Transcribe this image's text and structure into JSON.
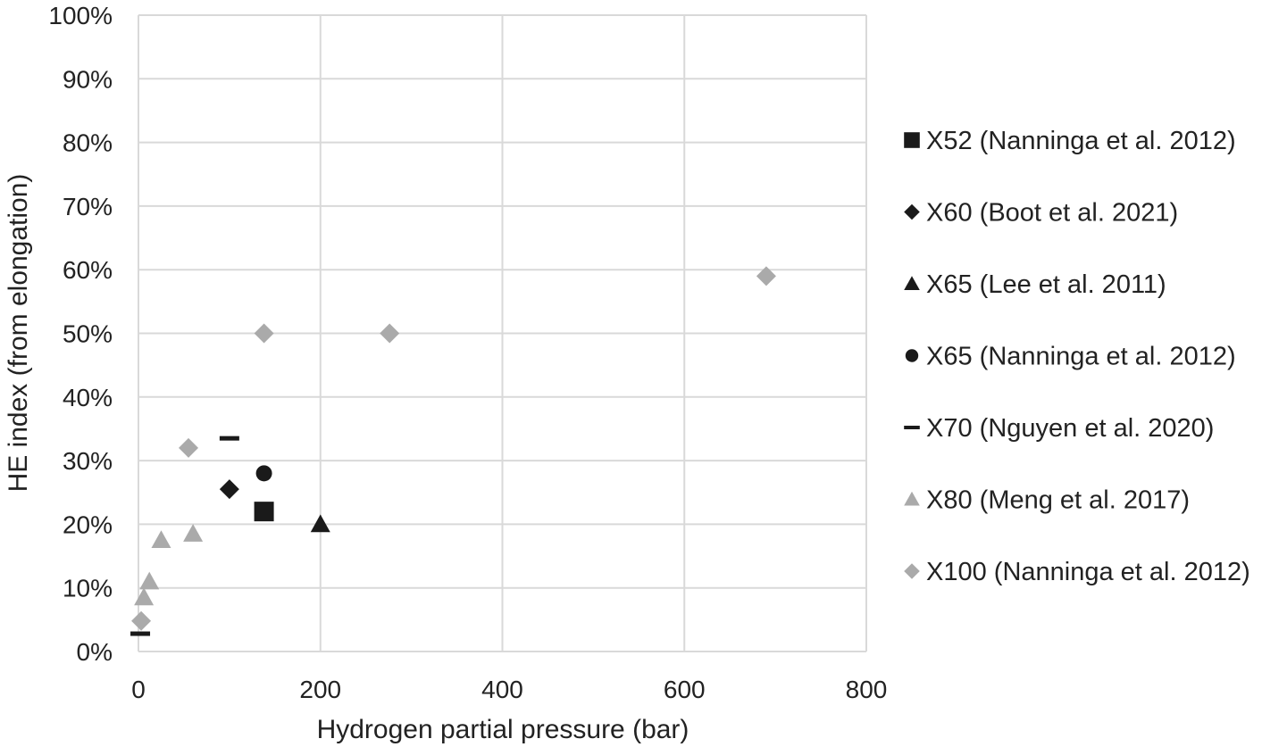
{
  "chart_data": {
    "type": "scatter",
    "xlabel": "Hydrogen partial pressure (bar)",
    "ylabel": "HE index (from elongation)",
    "xlim": [
      0,
      800
    ],
    "ylim": [
      0,
      1
    ],
    "x_ticks": [
      0,
      200,
      400,
      600,
      800
    ],
    "x_tick_labels": [
      "0",
      "200",
      "400",
      "600",
      "800"
    ],
    "y_ticks": [
      0,
      0.1,
      0.2,
      0.3,
      0.4,
      0.5,
      0.6,
      0.7,
      0.8,
      0.9,
      1.0
    ],
    "y_tick_labels": [
      "0%",
      "10%",
      "20%",
      "30%",
      "40%",
      "50%",
      "60%",
      "70%",
      "80%",
      "90%",
      "100%"
    ],
    "grid": true,
    "legend_position": "right",
    "series": [
      {
        "name": "X52 (Nanninga et al. 2012)",
        "marker": "square",
        "color": "#1a1a1a",
        "points": [
          [
            138,
            0.22
          ]
        ]
      },
      {
        "name": "X60 (Boot et al. 2021)",
        "marker": "diamond",
        "color": "#1a1a1a",
        "points": [
          [
            100,
            0.255
          ]
        ]
      },
      {
        "name": "X65 (Lee et al. 2011)",
        "marker": "triangle",
        "color": "#1a1a1a",
        "points": [
          [
            200,
            0.2
          ]
        ]
      },
      {
        "name": "X65 (Nanninga et al. 2012)",
        "marker": "circle",
        "color": "#1a1a1a",
        "points": [
          [
            138,
            0.28
          ]
        ]
      },
      {
        "name": "X70 (Nguyen et al. 2020)",
        "marker": "dash",
        "color": "#1a1a1a",
        "points": [
          [
            2,
            0.028
          ],
          [
            100,
            0.335
          ]
        ]
      },
      {
        "name": "X80 (Meng et al. 2017)",
        "marker": "triangle",
        "color": "#aaaaaa",
        "points": [
          [
            6,
            0.085
          ],
          [
            12,
            0.11
          ],
          [
            25,
            0.175
          ],
          [
            60,
            0.185
          ]
        ]
      },
      {
        "name": "X100 (Nanninga et al. 2012)",
        "marker": "diamond",
        "color": "#aaaaaa",
        "points": [
          [
            3,
            0.048
          ],
          [
            55,
            0.32
          ],
          [
            138,
            0.5
          ],
          [
            276,
            0.5
          ],
          [
            690,
            0.59
          ]
        ]
      }
    ]
  }
}
